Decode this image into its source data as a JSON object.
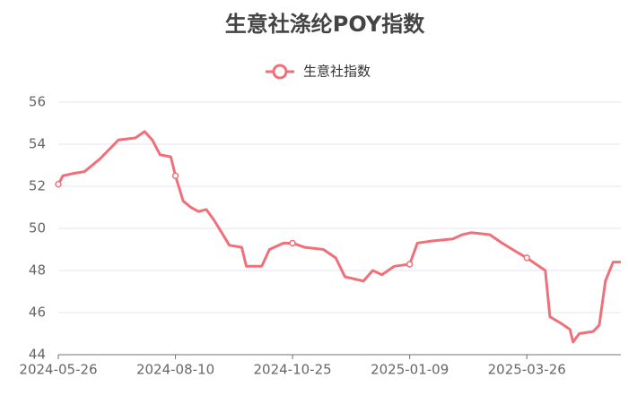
{
  "chart_data": {
    "type": "line",
    "title": "生意社涤纶POY指数",
    "x": [
      "2024-05-26",
      "2024-05-29",
      "2024-06-04",
      "2024-06-12",
      "2024-06-22",
      "2024-07-04",
      "2024-07-15",
      "2024-07-21",
      "2024-07-26",
      "2024-07-31",
      "2024-08-07",
      "2024-08-10",
      "2024-08-15",
      "2024-08-20",
      "2024-08-25",
      "2024-08-30",
      "2024-09-04",
      "2024-09-14",
      "2024-09-22",
      "2024-09-25",
      "2024-10-05",
      "2024-10-10",
      "2024-10-19",
      "2024-10-25",
      "2024-11-02",
      "2024-11-14",
      "2024-11-22",
      "2024-11-28",
      "2024-12-10",
      "2024-12-16",
      "2024-12-22",
      "2024-12-30",
      "2025-01-09",
      "2025-01-14",
      "2025-01-23",
      "2025-02-06",
      "2025-02-12",
      "2025-02-18",
      "2025-03-02",
      "2025-03-10",
      "2025-03-19",
      "2025-03-26",
      "2025-04-01",
      "2025-04-07",
      "2025-04-10",
      "2025-04-17",
      "2025-04-23",
      "2025-04-25",
      "2025-04-29",
      "2025-05-08",
      "2025-05-12",
      "2025-05-16",
      "2025-05-21",
      "2025-05-26"
    ],
    "series": [
      {
        "name": "生意社指数",
        "color": "#f0707a",
        "values": [
          52.1,
          52.5,
          52.6,
          52.7,
          53.3,
          54.2,
          54.3,
          54.6,
          54.2,
          53.5,
          53.4,
          52.5,
          51.3,
          51.0,
          50.8,
          50.9,
          50.4,
          49.2,
          49.1,
          48.2,
          48.2,
          49.0,
          49.3,
          49.3,
          49.1,
          49.0,
          48.6,
          47.7,
          47.5,
          48.0,
          47.8,
          48.2,
          48.3,
          49.3,
          49.4,
          49.5,
          49.7,
          49.8,
          49.7,
          49.3,
          48.9,
          48.6,
          48.3,
          48.0,
          45.8,
          45.5,
          45.2,
          44.6,
          45.0,
          45.1,
          45.4,
          47.5,
          48.4,
          48.4
        ]
      }
    ],
    "xlim": [
      "2024-05-26",
      "2025-05-26"
    ],
    "xticks": [
      "2024-05-26",
      "2024-08-10",
      "2024-10-25",
      "2025-01-09",
      "2025-03-26"
    ],
    "ylim": [
      44,
      56
    ],
    "yticks": [
      44,
      46,
      48,
      50,
      52,
      54,
      56
    ],
    "grid": true
  }
}
